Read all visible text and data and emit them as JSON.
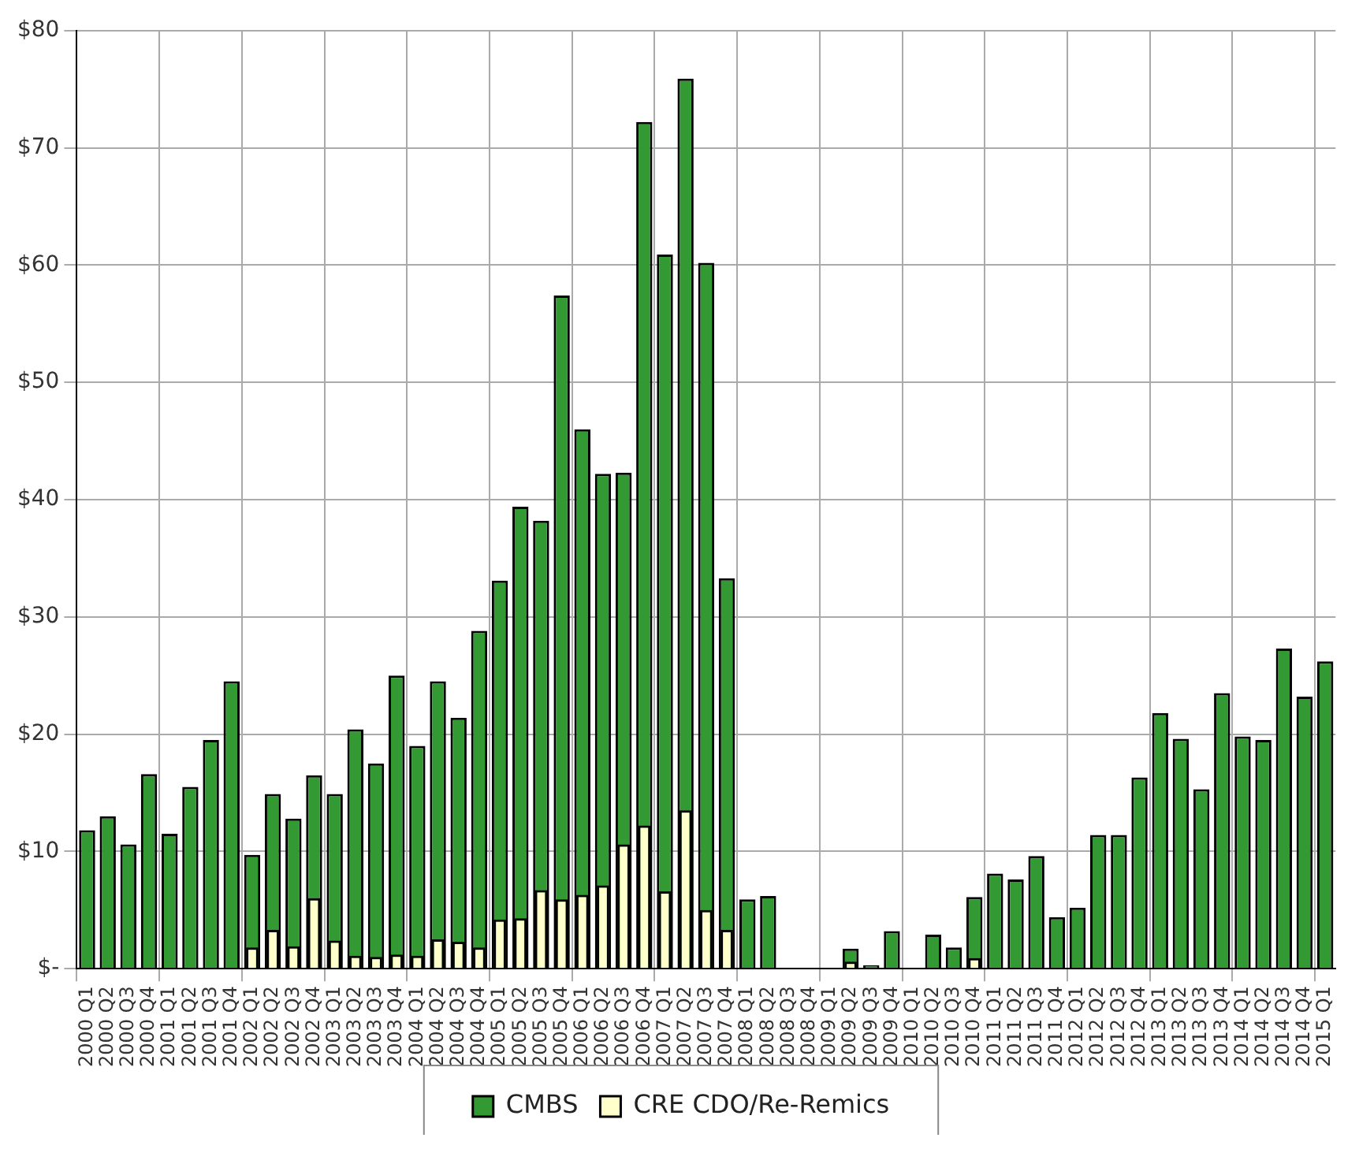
{
  "chart_data": {
    "type": "bar",
    "categories": [
      "2000 Q1",
      "2000 Q2",
      "2000 Q3",
      "2000 Q4",
      "2001 Q1",
      "2001 Q2",
      "2001 Q3",
      "2001 Q4",
      "2002 Q1",
      "2002 Q2",
      "2002 Q3",
      "2002 Q4",
      "2003 Q1",
      "2003 Q2",
      "2003 Q3",
      "2003 Q4",
      "2004 Q1",
      "2004 Q2",
      "2004 Q3",
      "2004 Q4",
      "2005 Q1",
      "2005 Q2",
      "2005 Q3",
      "2005 Q4",
      "2006 Q1",
      "2006 Q2",
      "2006 Q3",
      "2006 Q4",
      "2007 Q1",
      "2007 Q2",
      "2007 Q3",
      "2007 Q4",
      "2008 Q1",
      "2008 Q2",
      "2008 Q3",
      "2008 Q4",
      "2009 Q1",
      "2009 Q2",
      "2009 Q3",
      "2009 Q4",
      "2010 Q1",
      "2010 Q2",
      "2010 Q3",
      "2010 Q4",
      "2011 Q1",
      "2011 Q2",
      "2011 Q3",
      "2011 Q4",
      "2012 Q1",
      "2012 Q2",
      "2012 Q3",
      "2012 Q4",
      "2013 Q1",
      "2013 Q2",
      "2013 Q3",
      "2013 Q4",
      "2014 Q1",
      "2014 Q2",
      "2014 Q3",
      "2014 Q4",
      "2015 Q1"
    ],
    "series": [
      {
        "name": "CMBS",
        "color": "#339933",
        "values": [
          11.8,
          13,
          10.6,
          16.6,
          11.5,
          15.5,
          19.5,
          24.5,
          9.7,
          14.9,
          12.8,
          16.5,
          14.9,
          20.4,
          17.5,
          25,
          19,
          24.5,
          21.4,
          28.8,
          33.1,
          39.4,
          38.2,
          57.4,
          46,
          42.2,
          42.3,
          72.2,
          60.9,
          75.9,
          60.2,
          33.3,
          5.9,
          6.2,
          null,
          null,
          null,
          1.7,
          0.3,
          3.2,
          null,
          2.9,
          1.8,
          6.1,
          8.1,
          7.6,
          9.6,
          4.4,
          5.2,
          11.4,
          11.4,
          16.3,
          21.8,
          19.6,
          15.3,
          23.5,
          19.8,
          19.5,
          27.3,
          23.2,
          26.2
        ]
      },
      {
        "name": "CRE CDO/Re-Remics",
        "color": "#ffffcc",
        "values": [
          null,
          null,
          null,
          null,
          null,
          null,
          null,
          null,
          1.8,
          3.3,
          1.9,
          6,
          2.4,
          1.1,
          1,
          1.2,
          1.1,
          2.5,
          2.3,
          1.8,
          4.2,
          4.3,
          6.7,
          5.9,
          6.3,
          7.1,
          10.6,
          12.2,
          6.6,
          13.5,
          5,
          3.3,
          null,
          null,
          null,
          null,
          null,
          0.6,
          null,
          null,
          null,
          null,
          null,
          0.9,
          null,
          null,
          null,
          null,
          null,
          null,
          null,
          null,
          null,
          null,
          null,
          null,
          null,
          null,
          null,
          null,
          null
        ]
      }
    ],
    "ylim": [
      0,
      80
    ],
    "yticks": [
      {
        "value": 0,
        "label": "$-"
      },
      {
        "value": 10,
        "label": "$10"
      },
      {
        "value": 20,
        "label": "$20"
      },
      {
        "value": 30,
        "label": "$30"
      },
      {
        "value": 40,
        "label": "$40"
      },
      {
        "value": 50,
        "label": "$50"
      },
      {
        "value": 60,
        "label": "$60"
      },
      {
        "value": 70,
        "label": "$70"
      },
      {
        "value": 80,
        "label": "$80"
      }
    ],
    "grid": true,
    "legend": "bottom"
  }
}
